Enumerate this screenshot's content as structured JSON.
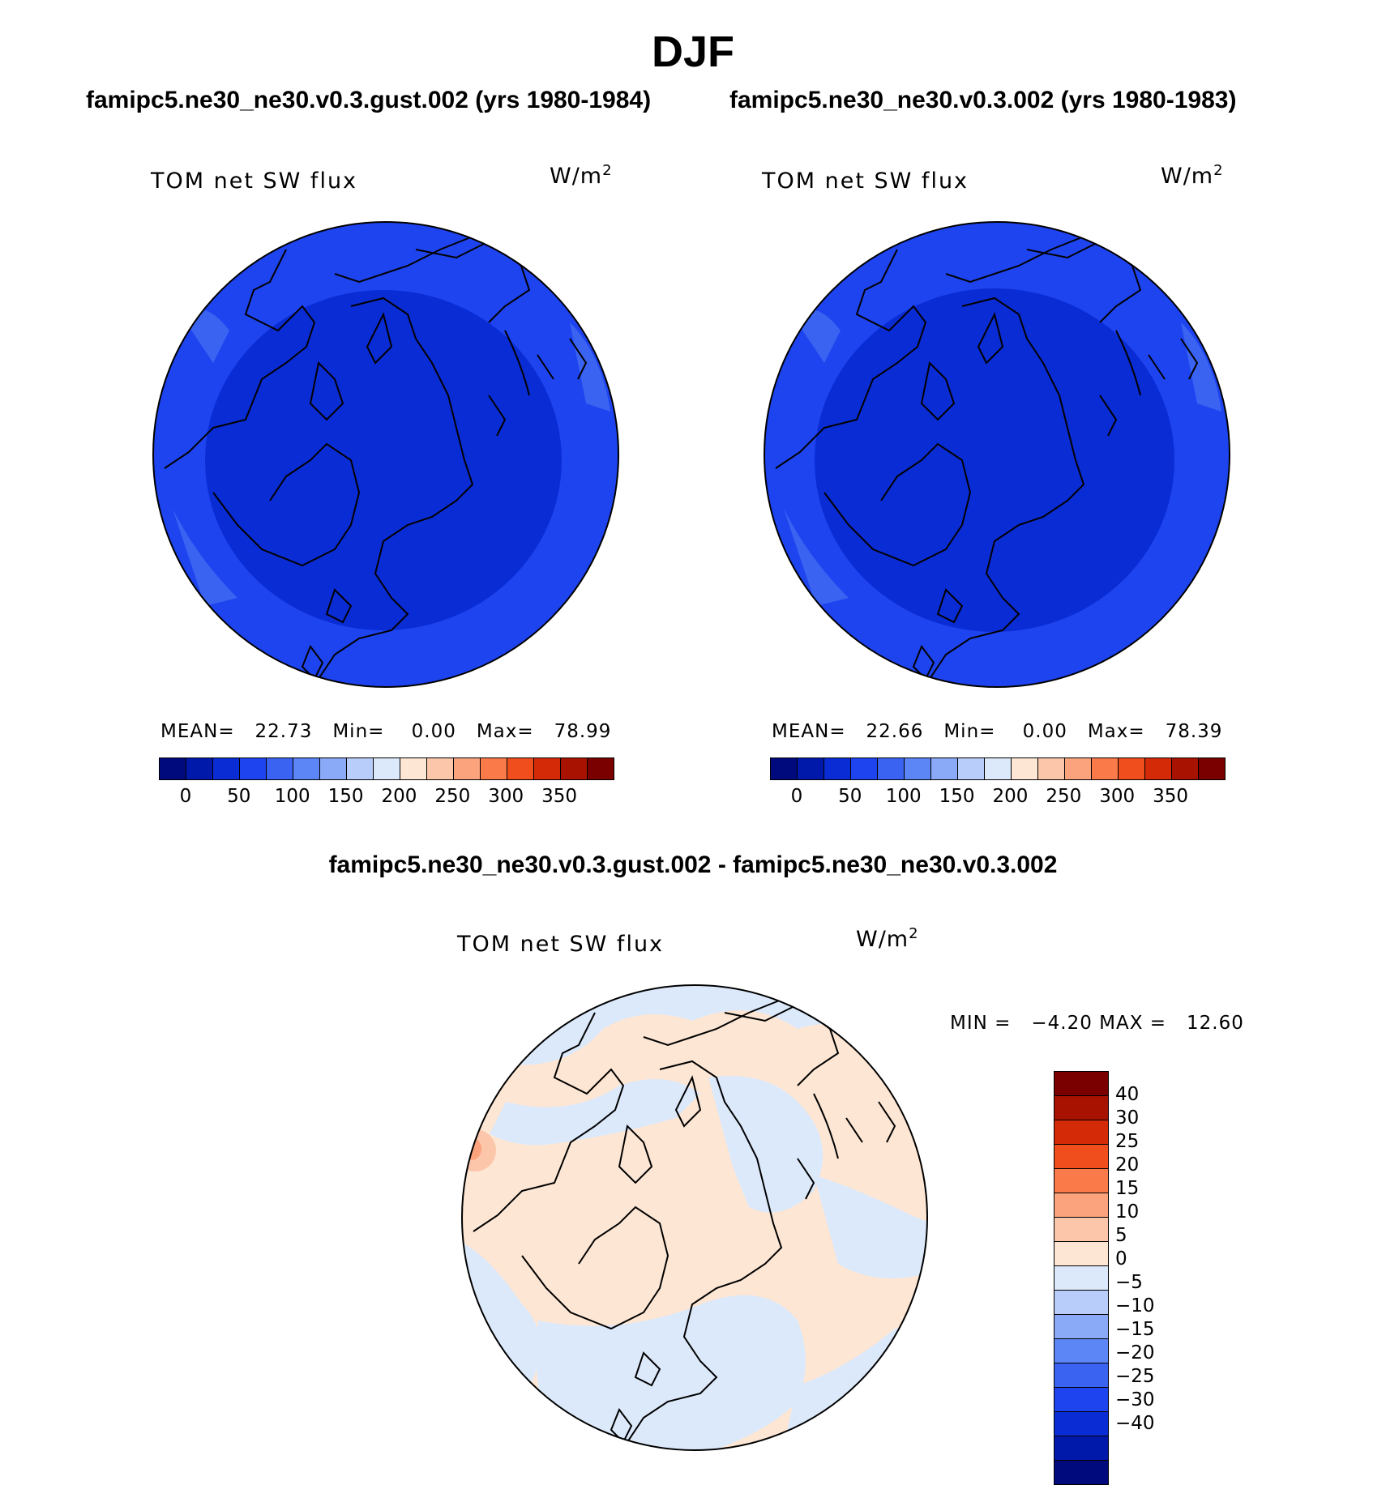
{
  "title": "DJF",
  "panels": {
    "test": {
      "case_title": "famipc5.ne30_ne30.v0.3.gust.002 (yrs 1980-1984)",
      "label": "TOM net SW flux",
      "units": "W/m",
      "units_exp": "2",
      "mean_label": "MEAN=",
      "mean_value": "22.73",
      "min_label": "Min=",
      "min_value": "0.00",
      "max_label": "Max=",
      "max_value": "78.99"
    },
    "control": {
      "case_title": "famipc5.ne30_ne30.v0.3.002 (yrs 1980-1983)",
      "label": "TOM net SW flux",
      "units": "W/m",
      "units_exp": "2",
      "mean_label": "MEAN=",
      "mean_value": "22.66",
      "min_label": "Min=",
      "min_value": "0.00",
      "max_label": "Max=",
      "max_value": "78.39"
    },
    "diff": {
      "case_title": "famipc5.ne30_ne30.v0.3.gust.002 - famipc5.ne30_ne30.v0.3.002",
      "label": "TOM net SW flux",
      "units": "W/m",
      "units_exp": "2",
      "min_label": "MIN =",
      "min_value": "−4.20",
      "max_label": "MAX =",
      "max_value": "12.60"
    }
  },
  "chart_data": [
    {
      "type": "heatmap",
      "projection": "north polar stereographic",
      "title": "famipc5.ne30_ne30.v0.3.gust.002 (yrs 1980-1984)",
      "variable": "TOM net SW flux",
      "units": "W/m2",
      "stats": {
        "mean": 22.73,
        "min": 0.0,
        "max": 78.99
      },
      "levels": [
        0,
        25,
        50,
        75,
        100,
        125,
        150,
        175,
        200,
        225,
        250,
        275,
        300,
        325,
        350
      ],
      "tick_labels": [
        "0",
        "50",
        "100",
        "150",
        "200",
        "250",
        "300",
        "350"
      ],
      "colors": [
        "#000a7d",
        "#0019aa",
        "#0a2cd4",
        "#1e44f0",
        "#3a63f2",
        "#5c86f5",
        "#8aaaf7",
        "#b8cdf9",
        "#dce9fb",
        "#fde6d4",
        "#fcc6aa",
        "#fba37d",
        "#fa7a4a",
        "#f04e1c",
        "#d42a08",
        "#a81200",
        "#7a0000"
      ]
    },
    {
      "type": "heatmap",
      "projection": "north polar stereographic",
      "title": "famipc5.ne30_ne30.v0.3.002 (yrs 1980-1983)",
      "variable": "TOM net SW flux",
      "units": "W/m2",
      "stats": {
        "mean": 22.66,
        "min": 0.0,
        "max": 78.39
      },
      "levels": [
        0,
        25,
        50,
        75,
        100,
        125,
        150,
        175,
        200,
        225,
        250,
        275,
        300,
        325,
        350
      ],
      "tick_labels": [
        "0",
        "50",
        "100",
        "150",
        "200",
        "250",
        "300",
        "350"
      ],
      "colors": [
        "#000a7d",
        "#0019aa",
        "#0a2cd4",
        "#1e44f0",
        "#3a63f2",
        "#5c86f5",
        "#8aaaf7",
        "#b8cdf9",
        "#dce9fb",
        "#fde6d4",
        "#fcc6aa",
        "#fba37d",
        "#fa7a4a",
        "#f04e1c",
        "#d42a08",
        "#a81200",
        "#7a0000"
      ]
    },
    {
      "type": "heatmap",
      "projection": "north polar stereographic",
      "title": "famipc5.ne30_ne30.v0.3.gust.002 - famipc5.ne30_ne30.v0.3.002",
      "variable": "TOM net SW flux",
      "units": "W/m2",
      "stats": {
        "min": -4.2,
        "max": 12.6
      },
      "levels": [
        -40,
        -30,
        -25,
        -20,
        -15,
        -10,
        -5,
        0,
        5,
        10,
        15,
        20,
        25,
        30,
        40
      ],
      "tick_labels": [
        "40",
        "30",
        "25",
        "20",
        "15",
        "10",
        "5",
        "0",
        "−5",
        "−10",
        "−15",
        "−20",
        "−25",
        "−30",
        "−40"
      ],
      "colors": [
        "#000a7d",
        "#0019aa",
        "#0a2cd4",
        "#1e44f0",
        "#3a63f2",
        "#5c86f5",
        "#8aaaf7",
        "#b8cdf9",
        "#dce9fb",
        "#fde6d4",
        "#fcc6aa",
        "#fba37d",
        "#fa7a4a",
        "#f04e1c",
        "#d42a08",
        "#a81200",
        "#7a0000"
      ]
    }
  ]
}
